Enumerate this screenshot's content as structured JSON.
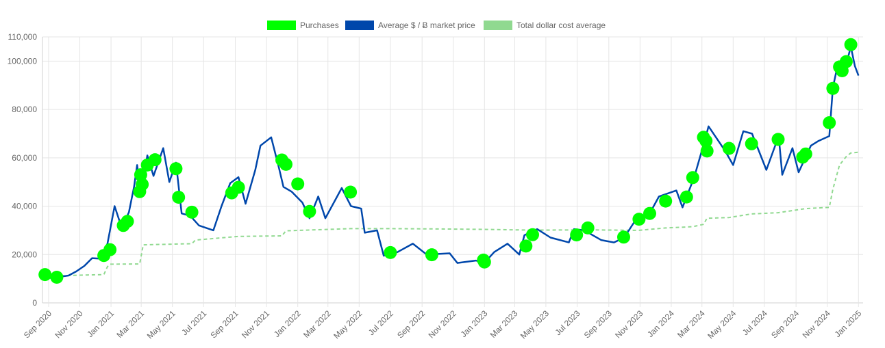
{
  "chart_data": {
    "type": "line",
    "title": "",
    "xlabel": "",
    "ylabel": "",
    "ylim": [
      0,
      110000
    ],
    "xlim": [
      "2020-08-20",
      "2025-01-10"
    ],
    "y_ticks": [
      0,
      20000,
      40000,
      60000,
      80000,
      100000,
      110000
    ],
    "y_tick_labels": [
      "0",
      "20,000",
      "40,000",
      "60,000",
      "80,000",
      "100,000",
      "110,000"
    ],
    "x_tick_labels": [
      "Sep 2020",
      "Nov 2020",
      "Jan 2021",
      "Mar 2021",
      "May 2021",
      "Jul 2021",
      "Sep 2021",
      "Nov 2021",
      "Jan 2022",
      "Mar 2022",
      "May 2022",
      "Jul 2022",
      "Sep 2022",
      "Nov 2022",
      "Jan 2023",
      "Mar 2023",
      "May 2023",
      "Jul 2023",
      "Sep 2023",
      "Nov 2023",
      "Jan 2024",
      "Mar 2024",
      "May 2024",
      "Jul 2024",
      "Sep 2024",
      "Nov 2024",
      "Jan 2025"
    ],
    "x_ticks": [
      "2020-09-01",
      "2020-11-01",
      "2021-01-01",
      "2021-03-01",
      "2021-05-01",
      "2021-07-01",
      "2021-09-01",
      "2021-11-01",
      "2022-01-01",
      "2022-03-01",
      "2022-05-01",
      "2022-07-01",
      "2022-09-01",
      "2022-11-01",
      "2023-01-01",
      "2023-03-01",
      "2023-05-01",
      "2023-07-01",
      "2023-09-01",
      "2023-11-01",
      "2024-01-01",
      "2024-03-01",
      "2024-05-01",
      "2024-07-01",
      "2024-09-01",
      "2024-11-01",
      "2025-01-01"
    ],
    "grid": true,
    "legend_position": "top-center",
    "legend": [
      {
        "label": "Purchases",
        "color": "#00ff00"
      },
      {
        "label": "Average $ / Ƀ market price",
        "color": "#0047ab"
      },
      {
        "label": "Total dollar cost average",
        "color": "#90d990"
      }
    ],
    "series": [
      {
        "name": "Purchases",
        "type": "scatter",
        "color": "#00ff00",
        "points": [
          {
            "x": "2020-08-25",
            "y": 11700
          },
          {
            "x": "2020-09-17",
            "y": 10600
          },
          {
            "x": "2020-12-18",
            "y": 19600
          },
          {
            "x": "2020-12-30",
            "y": 22000
          },
          {
            "x": "2021-01-25",
            "y": 32000
          },
          {
            "x": "2021-02-02",
            "y": 33700
          },
          {
            "x": "2021-02-26",
            "y": 46000
          },
          {
            "x": "2021-02-28",
            "y": 53000
          },
          {
            "x": "2021-03-03",
            "y": 49000
          },
          {
            "x": "2021-03-13",
            "y": 57000
          },
          {
            "x": "2021-03-28",
            "y": 59200
          },
          {
            "x": "2021-05-08",
            "y": 55500
          },
          {
            "x": "2021-05-13",
            "y": 43700
          },
          {
            "x": "2021-06-08",
            "y": 37500
          },
          {
            "x": "2021-08-25",
            "y": 45500
          },
          {
            "x": "2021-09-07",
            "y": 47800
          },
          {
            "x": "2021-12-01",
            "y": 59100
          },
          {
            "x": "2021-12-09",
            "y": 57300
          },
          {
            "x": "2022-01-01",
            "y": 49200
          },
          {
            "x": "2022-01-24",
            "y": 37800
          },
          {
            "x": "2022-04-14",
            "y": 45800
          },
          {
            "x": "2022-07-01",
            "y": 20800
          },
          {
            "x": "2022-09-20",
            "y": 19900
          },
          {
            "x": "2022-12-30",
            "y": 17700
          },
          {
            "x": "2023-01-01",
            "y": 16900
          },
          {
            "x": "2023-03-23",
            "y": 23500
          },
          {
            "x": "2023-04-05",
            "y": 28200
          },
          {
            "x": "2023-06-30",
            "y": 28100
          },
          {
            "x": "2023-07-22",
            "y": 31000
          },
          {
            "x": "2023-09-30",
            "y": 27200
          },
          {
            "x": "2023-10-30",
            "y": 34600
          },
          {
            "x": "2023-11-20",
            "y": 37000
          },
          {
            "x": "2023-12-21",
            "y": 42100
          },
          {
            "x": "2024-01-31",
            "y": 43800
          },
          {
            "x": "2024-02-12",
            "y": 51800
          },
          {
            "x": "2024-03-04",
            "y": 68500
          },
          {
            "x": "2024-03-09",
            "y": 67000
          },
          {
            "x": "2024-03-11",
            "y": 62800
          },
          {
            "x": "2024-04-23",
            "y": 63900
          },
          {
            "x": "2024-06-06",
            "y": 65800
          },
          {
            "x": "2024-07-28",
            "y": 67600
          },
          {
            "x": "2024-09-14",
            "y": 60300
          },
          {
            "x": "2024-09-20",
            "y": 61600
          },
          {
            "x": "2024-11-05",
            "y": 74500
          },
          {
            "x": "2024-11-12",
            "y": 88700
          },
          {
            "x": "2024-11-25",
            "y": 97600
          },
          {
            "x": "2024-11-30",
            "y": 96000
          },
          {
            "x": "2024-12-08",
            "y": 99800
          },
          {
            "x": "2024-12-17",
            "y": 106800
          }
        ]
      },
      {
        "name": "Average $ / Ƀ market price",
        "type": "line",
        "color": "#0047ab",
        "points": [
          {
            "x": "2020-08-20",
            "y": 11800
          },
          {
            "x": "2020-09-05",
            "y": 10300
          },
          {
            "x": "2020-09-20",
            "y": 10700
          },
          {
            "x": "2020-10-10",
            "y": 11300
          },
          {
            "x": "2020-10-25",
            "y": 13000
          },
          {
            "x": "2020-11-10",
            "y": 15300
          },
          {
            "x": "2020-11-25",
            "y": 18500
          },
          {
            "x": "2020-12-10",
            "y": 18300
          },
          {
            "x": "2020-12-25",
            "y": 24500
          },
          {
            "x": "2021-01-08",
            "y": 40000
          },
          {
            "x": "2021-01-22",
            "y": 31000
          },
          {
            "x": "2021-02-05",
            "y": 37500
          },
          {
            "x": "2021-02-15",
            "y": 48000
          },
          {
            "x": "2021-02-21",
            "y": 57000
          },
          {
            "x": "2021-02-28",
            "y": 45500
          },
          {
            "x": "2021-03-13",
            "y": 61000
          },
          {
            "x": "2021-03-25",
            "y": 52500
          },
          {
            "x": "2021-04-13",
            "y": 64000
          },
          {
            "x": "2021-04-25",
            "y": 50000
          },
          {
            "x": "2021-05-08",
            "y": 58000
          },
          {
            "x": "2021-05-19",
            "y": 37000
          },
          {
            "x": "2021-06-05",
            "y": 36000
          },
          {
            "x": "2021-06-22",
            "y": 32000
          },
          {
            "x": "2021-07-20",
            "y": 30000
          },
          {
            "x": "2021-08-05",
            "y": 40000
          },
          {
            "x": "2021-08-22",
            "y": 49500
          },
          {
            "x": "2021-09-07",
            "y": 52000
          },
          {
            "x": "2021-09-21",
            "y": 41000
          },
          {
            "x": "2021-10-10",
            "y": 55000
          },
          {
            "x": "2021-10-20",
            "y": 65000
          },
          {
            "x": "2021-11-10",
            "y": 68500
          },
          {
            "x": "2021-11-25",
            "y": 56000
          },
          {
            "x": "2021-12-04",
            "y": 48000
          },
          {
            "x": "2021-12-20",
            "y": 46000
          },
          {
            "x": "2022-01-10",
            "y": 41500
          },
          {
            "x": "2022-01-24",
            "y": 35000
          },
          {
            "x": "2022-02-10",
            "y": 44000
          },
          {
            "x": "2022-02-24",
            "y": 35000
          },
          {
            "x": "2022-03-28",
            "y": 47500
          },
          {
            "x": "2022-04-15",
            "y": 40000
          },
          {
            "x": "2022-05-05",
            "y": 39000
          },
          {
            "x": "2022-05-12",
            "y": 29000
          },
          {
            "x": "2022-06-05",
            "y": 30000
          },
          {
            "x": "2022-06-18",
            "y": 19500
          },
          {
            "x": "2022-07-15",
            "y": 21000
          },
          {
            "x": "2022-08-14",
            "y": 24500
          },
          {
            "x": "2022-09-10",
            "y": 20000
          },
          {
            "x": "2022-10-25",
            "y": 20500
          },
          {
            "x": "2022-11-09",
            "y": 16500
          },
          {
            "x": "2022-12-15",
            "y": 17500
          },
          {
            "x": "2023-01-01",
            "y": 16600
          },
          {
            "x": "2023-01-20",
            "y": 21000
          },
          {
            "x": "2023-02-15",
            "y": 24500
          },
          {
            "x": "2023-03-10",
            "y": 20000
          },
          {
            "x": "2023-03-20",
            "y": 28000
          },
          {
            "x": "2023-04-14",
            "y": 30500
          },
          {
            "x": "2023-05-10",
            "y": 27000
          },
          {
            "x": "2023-06-15",
            "y": 25000
          },
          {
            "x": "2023-06-25",
            "y": 30500
          },
          {
            "x": "2023-07-15",
            "y": 30000
          },
          {
            "x": "2023-08-17",
            "y": 26000
          },
          {
            "x": "2023-09-11",
            "y": 25000
          },
          {
            "x": "2023-10-01",
            "y": 27000
          },
          {
            "x": "2023-10-24",
            "y": 34500
          },
          {
            "x": "2023-11-20",
            "y": 37000
          },
          {
            "x": "2023-12-08",
            "y": 44000
          },
          {
            "x": "2024-01-11",
            "y": 46500
          },
          {
            "x": "2024-01-23",
            "y": 39500
          },
          {
            "x": "2024-02-15",
            "y": 52000
          },
          {
            "x": "2024-03-05",
            "y": 66000
          },
          {
            "x": "2024-03-14",
            "y": 73000
          },
          {
            "x": "2024-04-15",
            "y": 63000
          },
          {
            "x": "2024-05-01",
            "y": 57000
          },
          {
            "x": "2024-05-21",
            "y": 71000
          },
          {
            "x": "2024-06-07",
            "y": 70000
          },
          {
            "x": "2024-07-05",
            "y": 55000
          },
          {
            "x": "2024-07-29",
            "y": 69000
          },
          {
            "x": "2024-08-05",
            "y": 53000
          },
          {
            "x": "2024-08-25",
            "y": 64000
          },
          {
            "x": "2024-09-06",
            "y": 54000
          },
          {
            "x": "2024-09-30",
            "y": 65000
          },
          {
            "x": "2024-10-15",
            "y": 67000
          },
          {
            "x": "2024-11-05",
            "y": 69000
          },
          {
            "x": "2024-11-12",
            "y": 89000
          },
          {
            "x": "2024-11-22",
            "y": 99000
          },
          {
            "x": "2024-12-05",
            "y": 96000
          },
          {
            "x": "2024-12-17",
            "y": 106000
          },
          {
            "x": "2024-12-25",
            "y": 98000
          },
          {
            "x": "2025-01-01",
            "y": 94000
          }
        ]
      },
      {
        "name": "Total dollar cost average",
        "type": "line",
        "style": "dashed",
        "color": "#90d990",
        "points": [
          {
            "x": "2020-08-20",
            "y": 11700
          },
          {
            "x": "2020-09-17",
            "y": 11200
          },
          {
            "x": "2020-12-18",
            "y": 11700
          },
          {
            "x": "2020-12-25",
            "y": 15000
          },
          {
            "x": "2020-12-30",
            "y": 16000
          },
          {
            "x": "2021-02-26",
            "y": 16100
          },
          {
            "x": "2021-03-05",
            "y": 24000
          },
          {
            "x": "2021-06-08",
            "y": 24500
          },
          {
            "x": "2021-06-15",
            "y": 26000
          },
          {
            "x": "2021-09-07",
            "y": 27500
          },
          {
            "x": "2021-12-01",
            "y": 27700
          },
          {
            "x": "2021-12-09",
            "y": 29800
          },
          {
            "x": "2022-04-14",
            "y": 30700
          },
          {
            "x": "2022-07-01",
            "y": 30700
          },
          {
            "x": "2022-09-20",
            "y": 30600
          },
          {
            "x": "2023-01-01",
            "y": 30400
          },
          {
            "x": "2023-04-05",
            "y": 30100
          },
          {
            "x": "2023-07-22",
            "y": 30200
          },
          {
            "x": "2023-10-30",
            "y": 30000
          },
          {
            "x": "2023-12-21",
            "y": 31000
          },
          {
            "x": "2024-02-12",
            "y": 31500
          },
          {
            "x": "2024-03-04",
            "y": 32500
          },
          {
            "x": "2024-03-11",
            "y": 35000
          },
          {
            "x": "2024-04-23",
            "y": 35300
          },
          {
            "x": "2024-06-06",
            "y": 36800
          },
          {
            "x": "2024-07-28",
            "y": 37300
          },
          {
            "x": "2024-09-20",
            "y": 39000
          },
          {
            "x": "2024-11-05",
            "y": 39500
          },
          {
            "x": "2024-11-12",
            "y": 47000
          },
          {
            "x": "2024-11-25",
            "y": 57000
          },
          {
            "x": "2024-12-08",
            "y": 60500
          },
          {
            "x": "2024-12-17",
            "y": 62000
          },
          {
            "x": "2025-01-01",
            "y": 62300
          }
        ]
      }
    ]
  }
}
